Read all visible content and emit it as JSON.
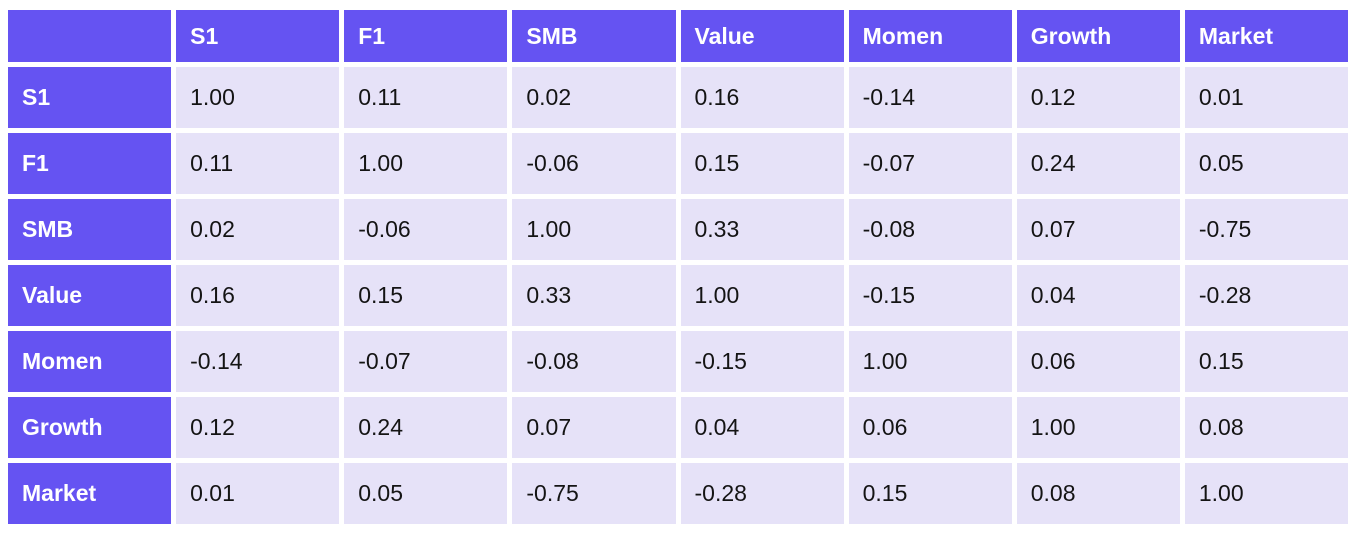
{
  "colors": {
    "header_bg": "#6553f2",
    "header_text": "#ffffff",
    "cell_bg": "#e6e2f8",
    "cell_text": "#141414",
    "grid_gap": "#ffffff"
  },
  "table": {
    "corner_label": "",
    "columns": [
      "S1",
      "F1",
      "SMB",
      "Value",
      "Momen",
      "Growth",
      "Market"
    ],
    "rows": [
      {
        "label": "S1",
        "values": [
          "1.00",
          "0.11",
          "0.02",
          "0.16",
          "-0.14",
          "0.12",
          "0.01"
        ]
      },
      {
        "label": "F1",
        "values": [
          "0.11",
          "1.00",
          "-0.06",
          "0.15",
          "-0.07",
          "0.24",
          "0.05"
        ]
      },
      {
        "label": "SMB",
        "values": [
          "0.02",
          "-0.06",
          "1.00",
          "0.33",
          "-0.08",
          "0.07",
          "-0.75"
        ]
      },
      {
        "label": "Value",
        "values": [
          "0.16",
          "0.15",
          "0.33",
          "1.00",
          "-0.15",
          "0.04",
          "-0.28"
        ]
      },
      {
        "label": "Momen",
        "values": [
          "-0.14",
          "-0.07",
          "-0.08",
          "-0.15",
          "1.00",
          "0.06",
          "0.15"
        ]
      },
      {
        "label": "Growth",
        "values": [
          "0.12",
          "0.24",
          "0.07",
          "0.04",
          "0.06",
          "1.00",
          "0.08"
        ]
      },
      {
        "label": "Market",
        "values": [
          "0.01",
          "0.05",
          "-0.75",
          "-0.28",
          "0.15",
          "0.08",
          "1.00"
        ]
      }
    ]
  },
  "chart_data": {
    "type": "table",
    "columns": [
      "S1",
      "F1",
      "SMB",
      "Value",
      "Momen",
      "Growth",
      "Market"
    ],
    "row_labels": [
      "S1",
      "F1",
      "SMB",
      "Value",
      "Momen",
      "Growth",
      "Market"
    ],
    "matrix": [
      [
        1.0,
        0.11,
        0.02,
        0.16,
        -0.14,
        0.12,
        0.01
      ],
      [
        0.11,
        1.0,
        -0.06,
        0.15,
        -0.07,
        0.24,
        0.05
      ],
      [
        0.02,
        -0.06,
        1.0,
        0.33,
        -0.08,
        0.07,
        -0.75
      ],
      [
        0.16,
        0.15,
        0.33,
        1.0,
        -0.15,
        0.04,
        -0.28
      ],
      [
        -0.14,
        -0.07,
        -0.08,
        -0.15,
        1.0,
        0.06,
        0.15
      ],
      [
        0.12,
        0.24,
        0.07,
        0.04,
        0.06,
        1.0,
        0.08
      ],
      [
        0.01,
        0.05,
        -0.75,
        -0.28,
        0.15,
        0.08,
        1.0
      ]
    ]
  }
}
